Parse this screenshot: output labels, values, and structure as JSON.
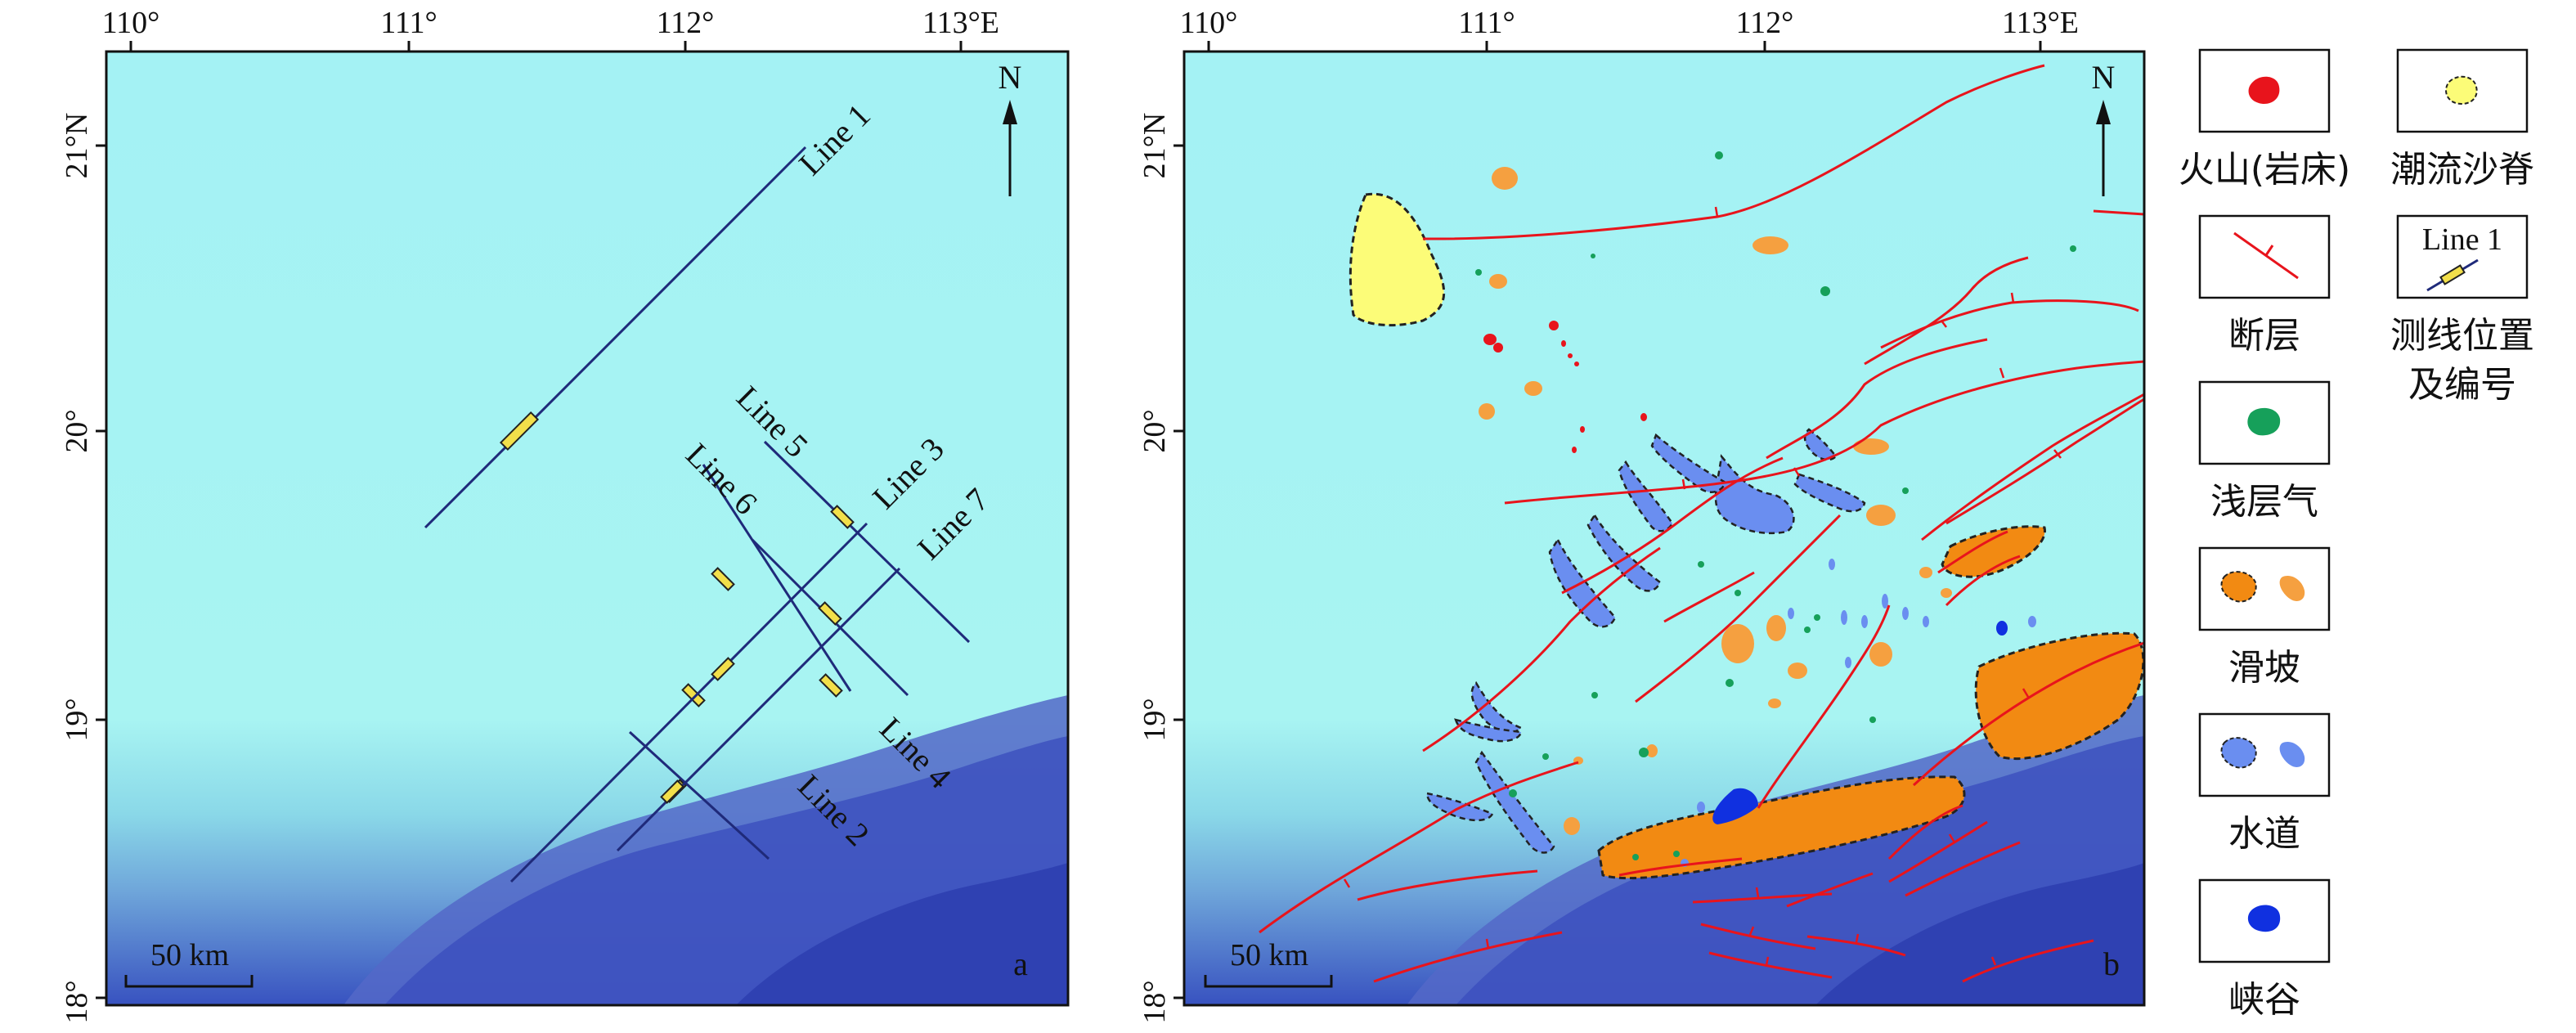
{
  "lon_ticks": [
    "110°",
    "111°",
    "112°",
    "113°E"
  ],
  "lat_ticks": [
    "21°N",
    "20°",
    "19°",
    "18°"
  ],
  "north": "N",
  "scale_bar": "50 km",
  "panels": {
    "a": {
      "label": "a"
    },
    "b": {
      "label": "b"
    }
  },
  "survey_lines": [
    "Line 1",
    "Line 2",
    "Line 3",
    "Line 4",
    "Line 5",
    "Line 6",
    "Line 7"
  ],
  "legend": {
    "volcano": "火山(岩床)",
    "fault": "断层",
    "gas": "浅层气",
    "slide": "滑坡",
    "channel": "水道",
    "canyon": "峡谷",
    "sand_ridge": "潮流沙脊",
    "line_sample": "Line 1",
    "line_pos_1": "测线位置",
    "line_pos_2": "及编号"
  },
  "colors": {
    "shelf": "#a6f4f4",
    "deep": "#3a56c0",
    "survey_line": "#1f2a7a",
    "survey_marker": "#f2df4a",
    "fault": "#e8141c",
    "volcano": "#e8141c",
    "gas": "#16a05a",
    "slide": "#f28a12",
    "slide_light": "#f5a040",
    "channel": "#6a8ef0",
    "canyon": "#1030e0",
    "sand_ridge": "#fcfc78"
  }
}
